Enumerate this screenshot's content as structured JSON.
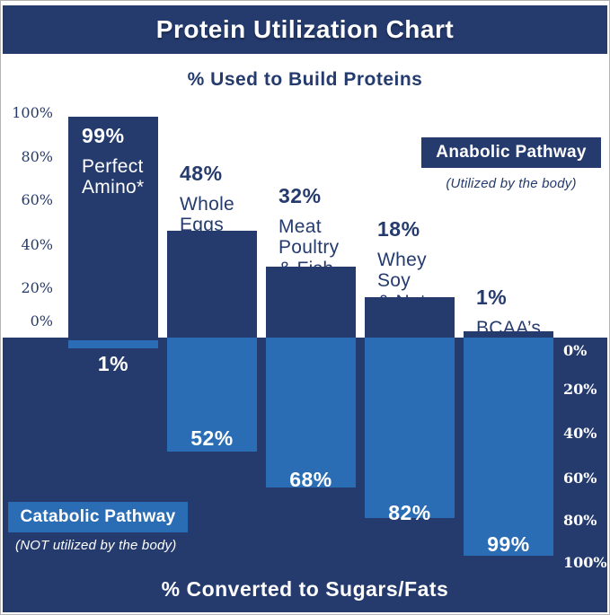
{
  "title": "Protein Utilization Chart",
  "colors": {
    "navy": "#253b6e",
    "light_blue": "#2b6db4",
    "background": "#ffffff"
  },
  "top_section": {
    "heading": "% Used to Build Proteins",
    "pathway_box": "Anabolic Pathway",
    "pathway_note": "(Utilized by the body)",
    "axis_ticks": [
      "100%",
      "80%",
      "60%",
      "40%",
      "20%",
      "0%"
    ]
  },
  "bottom_section": {
    "heading": "% Converted to Sugars/Fats",
    "pathway_box": "Catabolic Pathway",
    "pathway_note": "(NOT utilized by the body)",
    "axis_ticks": [
      "0%",
      "20%",
      "40%",
      "60%",
      "80%",
      "100%"
    ]
  },
  "bars": [
    {
      "top_pct": "99%",
      "name": "Perfect\nAmino*",
      "bottom_pct": "1%"
    },
    {
      "top_pct": "48%",
      "name": "Whole\nEggs",
      "bottom_pct": "52%"
    },
    {
      "top_pct": "32%",
      "name": "Meat\nPoultry\n& Fish",
      "bottom_pct": "68%"
    },
    {
      "top_pct": "18%",
      "name": "Whey\nSoy\n& Nuts",
      "bottom_pct": "82%"
    },
    {
      "top_pct": "1%",
      "name": "BCAA’s",
      "bottom_pct": "99%"
    }
  ],
  "chart_data": {
    "type": "bar",
    "orientation": "diverging-vertical",
    "title": "Protein Utilization Chart",
    "categories": [
      "Perfect Amino*",
      "Whole Eggs",
      "Meat Poultry & Fish",
      "Whey Soy & Nuts",
      "BCAA's"
    ],
    "series": [
      {
        "name": "% Used to Build Proteins",
        "values": [
          99,
          48,
          32,
          18,
          1
        ]
      },
      {
        "name": "% Converted to Sugars/Fats",
        "values": [
          1,
          52,
          68,
          82,
          99
        ]
      }
    ],
    "top_axis_label": "% Used to Build Proteins",
    "bottom_axis_label": "% Converted to Sugars/Fats",
    "top_axis_range": [
      0,
      100
    ],
    "bottom_axis_range": [
      0,
      100
    ],
    "grid": false,
    "legend": [
      "Anabolic Pathway (Utilized by the body)",
      "Catabolic Pathway (NOT utilized by the body)"
    ]
  }
}
